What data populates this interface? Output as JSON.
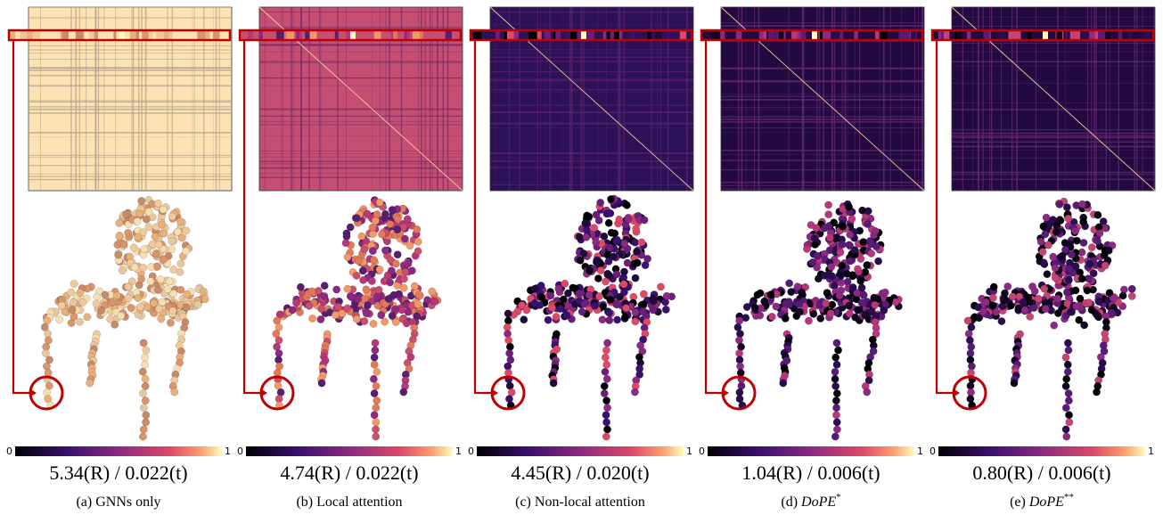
{
  "panels": [
    {
      "colorbar": {
        "min": "0",
        "max": "1"
      },
      "metric": "5.34(R) / 0.022(t)",
      "caption": {
        "label": "(a)",
        "text": "GNNs only"
      }
    },
    {
      "colorbar": {
        "min": "0",
        "max": "1"
      },
      "metric": "4.74(R) / 0.022(t)",
      "caption": {
        "label": "(b)",
        "text": "Local attention"
      }
    },
    {
      "colorbar": {
        "min": "0",
        "max": "1"
      },
      "metric": "4.45(R) / 0.020(t)",
      "caption": {
        "label": "(c)",
        "text": "Non-local attention"
      }
    },
    {
      "colorbar": {
        "min": "0",
        "max": "1"
      },
      "metric": "1.04(R) / 0.006(t)",
      "caption": {
        "label": "(d)",
        "text": "DoPE",
        "sup": "*"
      }
    },
    {
      "colorbar": {
        "min": "0",
        "max": "1"
      },
      "metric": "0.80(R) / 0.006(t)",
      "caption": {
        "label": "(e)",
        "text": "DoPE",
        "sup": "**"
      }
    }
  ]
}
